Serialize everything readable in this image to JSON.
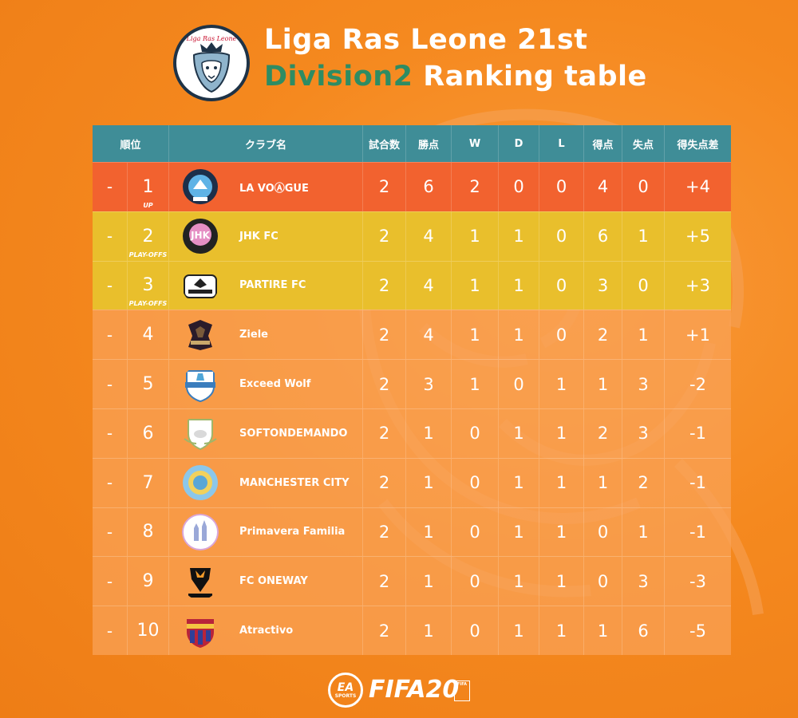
{
  "header": {
    "title_line1": "Liga Ras Leone 21st",
    "title_line2_accent": "Division2",
    "title_line2_rest": " Ranking table",
    "logo_text": "Liga Ras Leone"
  },
  "colors": {
    "background": "#f5891f",
    "header_bar": "#3f8d97",
    "first_row": "#f2622f",
    "playoff_row": "#e9bf2c",
    "accent_text": "#2e8c63"
  },
  "table": {
    "columns": [
      "順位",
      "クラブ名",
      "試合数",
      "勝点",
      "W",
      "D",
      "L",
      "得点",
      "失点",
      "得失点差"
    ],
    "rows": [
      {
        "move": "-",
        "rank": "1",
        "sub": "UP",
        "club": "LA VOⒶGUE",
        "crest": "la-vogue-crest",
        "p": "2",
        "pts": "6",
        "w": "2",
        "d": "0",
        "l": "0",
        "gf": "4",
        "ga": "0",
        "gd": "+4"
      },
      {
        "move": "-",
        "rank": "2",
        "sub": "PLAY-OFFS",
        "club": "JHK FC",
        "crest": "jhk-crest",
        "p": "2",
        "pts": "4",
        "w": "1",
        "d": "1",
        "l": "0",
        "gf": "6",
        "ga": "1",
        "gd": "+5"
      },
      {
        "move": "-",
        "rank": "3",
        "sub": "PLAY-OFFS",
        "club": "PARTIRE FC",
        "crest": "partire-crest",
        "p": "2",
        "pts": "4",
        "w": "1",
        "d": "1",
        "l": "0",
        "gf": "3",
        "ga": "0",
        "gd": "+3"
      },
      {
        "move": "-",
        "rank": "4",
        "sub": "",
        "club": "Ziele",
        "crest": "ziele-crest",
        "p": "2",
        "pts": "4",
        "w": "1",
        "d": "1",
        "l": "0",
        "gf": "2",
        "ga": "1",
        "gd": "+1"
      },
      {
        "move": "-",
        "rank": "5",
        "sub": "",
        "club": "Exceed Wolf",
        "crest": "exceed-wolf-crest",
        "p": "2",
        "pts": "3",
        "w": "1",
        "d": "0",
        "l": "1",
        "gf": "1",
        "ga": "3",
        "gd": "-2"
      },
      {
        "move": "-",
        "rank": "6",
        "sub": "",
        "club": "SOFTONDEMANDO",
        "crest": "softondemando-crest",
        "p": "2",
        "pts": "1",
        "w": "0",
        "d": "1",
        "l": "1",
        "gf": "2",
        "ga": "3",
        "gd": "-1"
      },
      {
        "move": "-",
        "rank": "7",
        "sub": "",
        "club": "MANCHESTER CITY",
        "crest": "manchester-city-crest",
        "p": "2",
        "pts": "1",
        "w": "0",
        "d": "1",
        "l": "1",
        "gf": "1",
        "ga": "2",
        "gd": "-1"
      },
      {
        "move": "-",
        "rank": "8",
        "sub": "",
        "club": "Primavera Familia",
        "crest": "primavera-crest",
        "p": "2",
        "pts": "1",
        "w": "0",
        "d": "1",
        "l": "1",
        "gf": "0",
        "ga": "1",
        "gd": "-1"
      },
      {
        "move": "-",
        "rank": "9",
        "sub": "",
        "club": "FC ONEWAY",
        "crest": "fc-oneway-crest",
        "p": "2",
        "pts": "1",
        "w": "0",
        "d": "1",
        "l": "1",
        "gf": "0",
        "ga": "3",
        "gd": "-3"
      },
      {
        "move": "-",
        "rank": "10",
        "sub": "",
        "club": "Atractivo",
        "crest": "atractivo-crest",
        "p": "2",
        "pts": "1",
        "w": "0",
        "d": "1",
        "l": "1",
        "gf": "1",
        "ga": "6",
        "gd": "-5"
      }
    ]
  },
  "footer": {
    "ea_big": "EA",
    "ea_small": "SPORTS",
    "game": "FIFA20",
    "badge": "FIFA"
  }
}
